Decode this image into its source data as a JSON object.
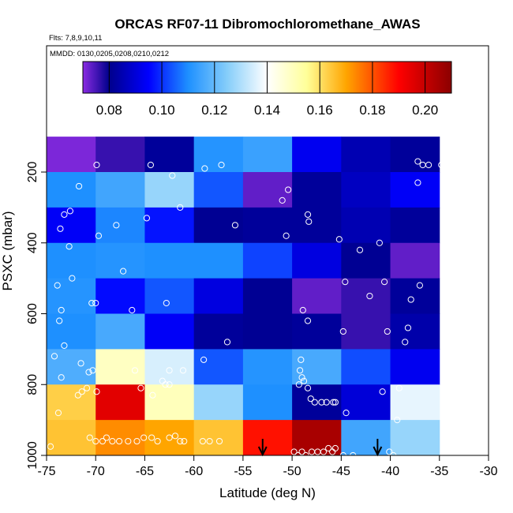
{
  "chart_data": {
    "type": "heatmap",
    "title": "ORCAS RF07-11 Dibromochloromethane_AWAS",
    "flights_note": "Flts: 7,8,9,10,11",
    "dates_note": "MMDD: 0130,0205,0208,0210,0212",
    "xlabel": "Latitude (deg N)",
    "ylabel": "PSXC (mbar)",
    "xlim": [
      -75,
      -30
    ],
    "ylim": [
      1000,
      100
    ],
    "x_ticks": [
      -75,
      -70,
      -65,
      -60,
      -55,
      -50,
      -45,
      -40,
      -35,
      -30
    ],
    "x_tick_labels": [
      "-75",
      "-70",
      "-65",
      "-60",
      "-55",
      "-50",
      "-45",
      "-40",
      "-35",
      "-30"
    ],
    "y_ticks": [
      200,
      400,
      600,
      800,
      1000
    ],
    "y_tick_labels": [
      "200",
      "400",
      "600",
      "800",
      "1000"
    ],
    "colorbar": {
      "range": [
        0.07,
        0.21
      ],
      "ticks": [
        0.08,
        0.1,
        0.12,
        0.14,
        0.16,
        0.18,
        0.2
      ],
      "tick_labels": [
        "0.08",
        "0.10",
        "0.12",
        "0.14",
        "0.16",
        "0.18",
        "0.20"
      ],
      "stops": [
        {
          "v": 0.07,
          "color": "#8A2BE2"
        },
        {
          "v": 0.08,
          "color": "#00008B"
        },
        {
          "v": 0.095,
          "color": "#0000FF"
        },
        {
          "v": 0.11,
          "color": "#1E90FF"
        },
        {
          "v": 0.125,
          "color": "#87CEFA"
        },
        {
          "v": 0.14,
          "color": "#FFFFFF"
        },
        {
          "v": 0.155,
          "color": "#FFFF99"
        },
        {
          "v": 0.17,
          "color": "#FFA500"
        },
        {
          "v": 0.19,
          "color": "#FF0000"
        },
        {
          "v": 0.21,
          "color": "#8B0000"
        }
      ]
    },
    "cells": {
      "lat_edges": [
        -75,
        -70,
        -65,
        -60,
        -55,
        -50,
        -45,
        -40,
        -35
      ],
      "p_edges": [
        100,
        200,
        300,
        400,
        500,
        600,
        700,
        800,
        900,
        1000
      ],
      "values": [
        [
          0.071,
          0.076,
          0.082,
          0.111,
          0.114,
          0.093,
          0.085,
          0.082
        ],
        [
          0.11,
          0.115,
          0.127,
          0.104,
          0.073,
          0.082,
          0.087,
          0.094
        ],
        [
          0.094,
          0.109,
          0.097,
          0.081,
          0.082,
          0.082,
          0.085,
          0.082
        ],
        [
          0.11,
          0.111,
          0.11,
          0.11,
          0.102,
          0.091,
          0.081,
          0.073
        ],
        [
          0.111,
          0.096,
          0.104,
          0.091,
          0.081,
          0.073,
          0.076,
          0.082
        ],
        [
          0.11,
          0.116,
          0.094,
          0.082,
          0.081,
          0.082,
          0.076,
          0.084
        ],
        [
          0.117,
          0.149,
          0.135,
          0.104,
          0.111,
          0.116,
          0.103,
          0.093
        ],
        [
          0.163,
          0.195,
          0.15,
          0.127,
          0.11,
          0.082,
          0.09,
          0.137
        ],
        [
          0.165,
          0.173,
          0.17,
          0.165,
          0.188,
          0.205,
          0.115,
          0.127
        ]
      ]
    },
    "samples": [
      [
        -74.6,
        975
      ],
      [
        -73.8,
        880
      ],
      [
        -73.5,
        780
      ],
      [
        -74.2,
        720
      ],
      [
        -73.2,
        690
      ],
      [
        -73.7,
        620
      ],
      [
        -73.9,
        520
      ],
      [
        -72.4,
        500
      ],
      [
        -72.7,
        410
      ],
      [
        -73.6,
        360
      ],
      [
        -73.2,
        320
      ],
      [
        -72.6,
        310
      ],
      [
        -71.7,
        240
      ],
      [
        -73.5,
        590
      ],
      [
        -71.8,
        830
      ],
      [
        -71.4,
        820
      ],
      [
        -70.9,
        810
      ],
      [
        -69.9,
        180
      ],
      [
        -69.7,
        380
      ],
      [
        -70.7,
        765
      ],
      [
        -70.3,
        760
      ],
      [
        -71.5,
        740
      ],
      [
        -69.9,
        820
      ],
      [
        -70.0,
        570
      ],
      [
        -70.4,
        570
      ],
      [
        -68.9,
        950
      ],
      [
        -68.3,
        960
      ],
      [
        -70.6,
        950
      ],
      [
        -70.0,
        960
      ],
      [
        -69.3,
        960
      ],
      [
        -67.6,
        960
      ],
      [
        -66.7,
        960
      ],
      [
        -65.8,
        960
      ],
      [
        -65.1,
        950
      ],
      [
        -64.3,
        950
      ],
      [
        -63.7,
        960
      ],
      [
        -62.5,
        950
      ],
      [
        -61.9,
        945
      ],
      [
        -61.4,
        960
      ],
      [
        -61.0,
        960
      ],
      [
        -59.1,
        960
      ],
      [
        -58.4,
        960
      ],
      [
        -57.4,
        960
      ],
      [
        -67.2,
        480
      ],
      [
        -67.9,
        350
      ],
      [
        -66.3,
        590
      ],
      [
        -66.0,
        760
      ],
      [
        -65.4,
        810
      ],
      [
        -64.8,
        330
      ],
      [
        -64.4,
        180
      ],
      [
        -62.8,
        570
      ],
      [
        -62.5,
        760
      ],
      [
        -62.5,
        800
      ],
      [
        -62.2,
        210
      ],
      [
        -61.4,
        300
      ],
      [
        -64.2,
        830
      ],
      [
        -63.2,
        790
      ],
      [
        -62.9,
        800
      ],
      [
        -61.1,
        760
      ],
      [
        -59.0,
        730
      ],
      [
        -58.9,
        190
      ],
      [
        -57.2,
        180
      ],
      [
        -56.6,
        680
      ],
      [
        -55.8,
        350
      ],
      [
        -51.0,
        280
      ],
      [
        -50.6,
        380
      ],
      [
        -50.4,
        250
      ],
      [
        -48.4,
        320
      ],
      [
        -48.3,
        340
      ],
      [
        -48.4,
        620
      ],
      [
        -45.2,
        390
      ],
      [
        -44.6,
        510
      ],
      [
        -43.1,
        420
      ],
      [
        -41.1,
        400
      ],
      [
        -40.6,
        510
      ],
      [
        -42.1,
        550
      ],
      [
        -40.3,
        650
      ],
      [
        -38.2,
        640
      ],
      [
        -37.9,
        560
      ],
      [
        -37.2,
        170
      ],
      [
        -36.7,
        180
      ],
      [
        -36.1,
        180
      ],
      [
        -34.8,
        180
      ],
      [
        -37.2,
        230
      ],
      [
        -37.0,
        520
      ],
      [
        -38.5,
        680
      ],
      [
        -48.9,
        590
      ],
      [
        -49.1,
        730
      ],
      [
        -49.2,
        760
      ],
      [
        -49.0,
        780
      ],
      [
        -48.8,
        790
      ],
      [
        -49.3,
        800
      ],
      [
        -48.4,
        810
      ],
      [
        -48.1,
        840
      ],
      [
        -47.7,
        850
      ],
      [
        -47.0,
        850
      ],
      [
        -46.5,
        850
      ],
      [
        -45.8,
        850
      ],
      [
        -45.6,
        850
      ],
      [
        -44.8,
        650
      ],
      [
        -44.5,
        880
      ],
      [
        -40.8,
        820
      ],
      [
        -39.1,
        810
      ],
      [
        -39.3,
        900
      ],
      [
        -49.8,
        990
      ],
      [
        -49.4,
        1000
      ],
      [
        -49.0,
        990
      ],
      [
        -48.6,
        1000
      ],
      [
        -48.0,
        990
      ],
      [
        -47.4,
        990
      ],
      [
        -46.8,
        990
      ],
      [
        -46.3,
        980
      ],
      [
        -45.9,
        990
      ],
      [
        -45.6,
        980
      ],
      [
        -44.8,
        1000
      ],
      [
        -43.8,
        1000
      ],
      [
        -40.1,
        990
      ],
      [
        -39.7,
        1000
      ]
    ],
    "arrows_lat": [
      -53.0,
      -41.3
    ]
  }
}
